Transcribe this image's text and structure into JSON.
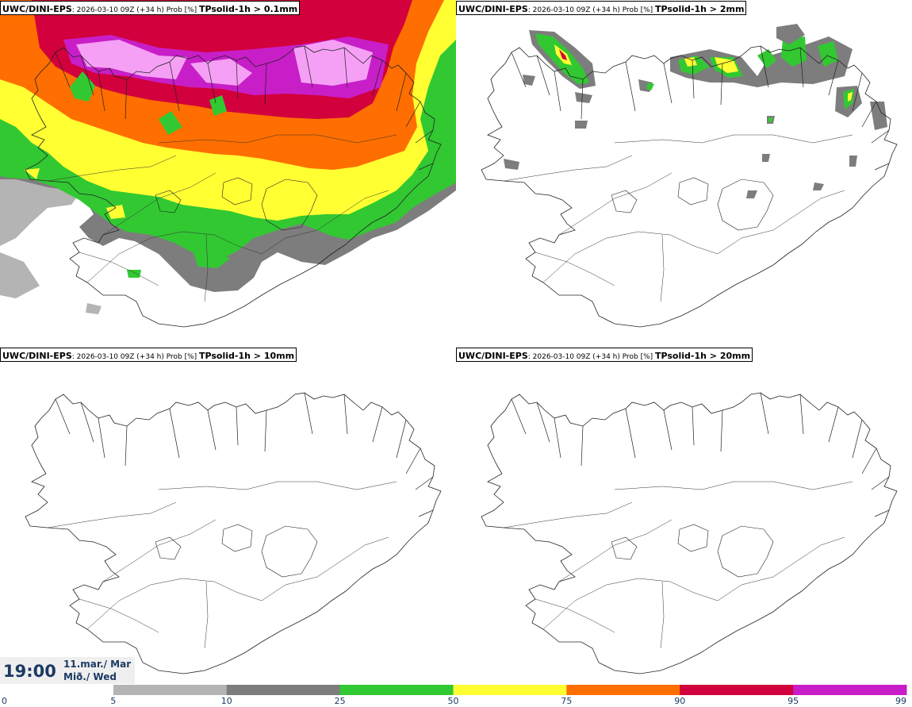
{
  "panels": [
    {
      "model": "UWC/DINI-EPS",
      "meta": ": 2026-03-10 09Z (+34 h) Prob [%] ",
      "variable": "TPsolid-1h > 0.1mm"
    },
    {
      "model": "UWC/DINI-EPS",
      "meta": ": 2026-03-10 09Z (+34 h) Prob [%] ",
      "variable": "TPsolid-1h > 2mm"
    },
    {
      "model": "UWC/DINI-EPS",
      "meta": ": 2026-03-10 09Z (+34 h) Prob [%] ",
      "variable": "TPsolid-1h > 10mm"
    },
    {
      "model": "UWC/DINI-EPS",
      "meta": ": 2026-03-10 09Z (+34 h) Prob [%] ",
      "variable": "TPsolid-1h > 20mm"
    }
  ],
  "valid_time": {
    "time": "19:00",
    "date_line1": "11.mar./ Mar",
    "date_line2": "Mið./ Wed"
  },
  "legend": {
    "ticks": [
      "0",
      "5",
      "10",
      "25",
      "50",
      "75",
      "90",
      "95",
      "99"
    ],
    "colors": [
      "#ffffff",
      "#b4b4b4",
      "#7d7d7d",
      "#32c832",
      "#ffff32",
      "#ff6e00",
      "#d2003c",
      "#c81ec8",
      "#f5a0f5"
    ]
  }
}
